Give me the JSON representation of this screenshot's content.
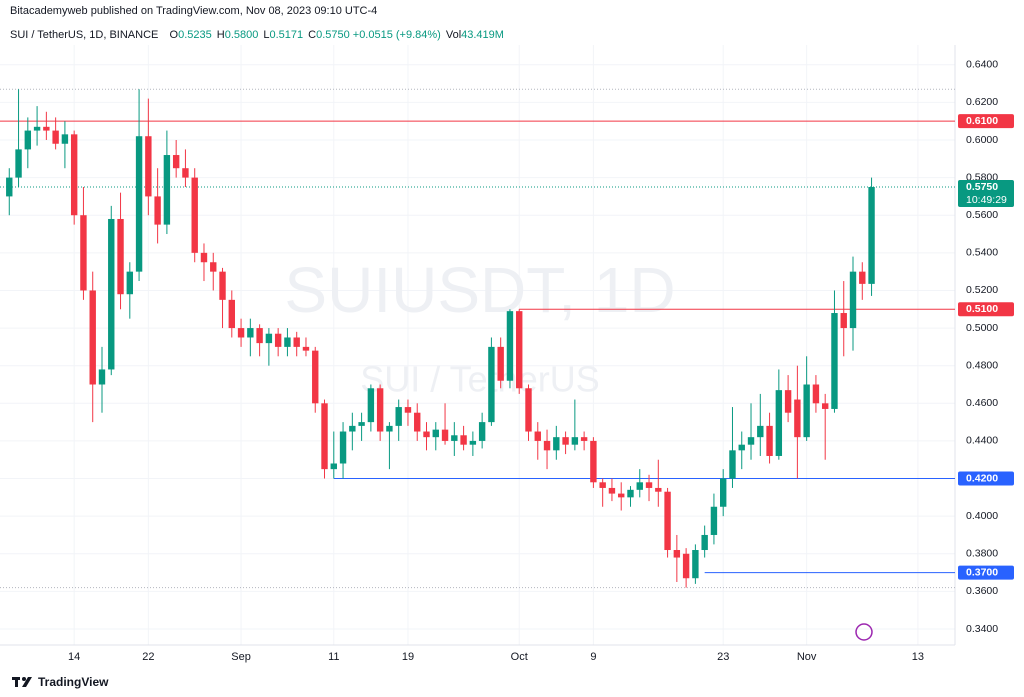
{
  "header": "Bitacademyweb published on TradingView.com, Nov 08, 2023 09:10 UTC-4",
  "footer": "TradingView",
  "chart_data": {
    "type": "candlestick",
    "symbol": "SUI / TetherUS, 1D, BINANCE",
    "fields": [
      {
        "key": "O",
        "text": "0.5235"
      },
      {
        "key": "H",
        "text": "0.5800"
      },
      {
        "key": "L",
        "text": "0.5171"
      },
      {
        "key": "C",
        "text": "0.5750"
      }
    ],
    "change": "+0.0515 (+9.84%)",
    "volume": {
      "key": "Vol",
      "text": "43.419M"
    },
    "watermark": "SUIUSDT, 1D",
    "watermark_sub": "SUI / TetherUS",
    "up_color": "#089981",
    "down_color": "#f23645",
    "x": [
      "2023-08-07",
      "2023-08-08",
      "2023-08-09",
      "2023-08-10",
      "2023-08-11",
      "2023-08-12",
      "2023-08-13",
      "2023-08-14",
      "2023-08-15",
      "2023-08-16",
      "2023-08-17",
      "2023-08-18",
      "2023-08-19",
      "2023-08-20",
      "2023-08-21",
      "2023-08-22",
      "2023-08-23",
      "2023-08-24",
      "2023-08-25",
      "2023-08-26",
      "2023-08-27",
      "2023-08-28",
      "2023-08-29",
      "2023-08-30",
      "2023-08-31",
      "2023-09-01",
      "2023-09-02",
      "2023-09-03",
      "2023-09-04",
      "2023-09-05",
      "2023-09-06",
      "2023-09-07",
      "2023-09-08",
      "2023-09-09",
      "2023-09-10",
      "2023-09-11",
      "2023-09-12",
      "2023-09-13",
      "2023-09-14",
      "2023-09-15",
      "2023-09-16",
      "2023-09-17",
      "2023-09-18",
      "2023-09-19",
      "2023-09-20",
      "2023-09-21",
      "2023-09-22",
      "2023-09-23",
      "2023-09-24",
      "2023-09-25",
      "2023-09-26",
      "2023-09-27",
      "2023-09-28",
      "2023-09-29",
      "2023-09-30",
      "2023-10-01",
      "2023-10-02",
      "2023-10-03",
      "2023-10-04",
      "2023-10-05",
      "2023-10-06",
      "2023-10-07",
      "2023-10-08",
      "2023-10-09",
      "2023-10-10",
      "2023-10-11",
      "2023-10-12",
      "2023-10-13",
      "2023-10-14",
      "2023-10-15",
      "2023-10-16",
      "2023-10-17",
      "2023-10-18",
      "2023-10-19",
      "2023-10-20",
      "2023-10-21",
      "2023-10-22",
      "2023-10-23",
      "2023-10-24",
      "2023-10-25",
      "2023-10-26",
      "2023-10-27",
      "2023-10-28",
      "2023-10-29",
      "2023-10-30",
      "2023-10-31",
      "2023-11-01",
      "2023-11-02",
      "2023-11-03",
      "2023-11-04",
      "2023-11-05",
      "2023-11-06",
      "2023-11-07",
      "2023-11-08"
    ],
    "open": [
      0.57,
      0.58,
      0.595,
      0.605,
      0.607,
      0.605,
      0.598,
      0.603,
      0.56,
      0.52,
      0.47,
      0.478,
      0.558,
      0.518,
      0.53,
      0.602,
      0.57,
      0.555,
      0.592,
      0.585,
      0.58,
      0.54,
      0.535,
      0.53,
      0.515,
      0.5,
      0.495,
      0.5,
      0.492,
      0.497,
      0.49,
      0.495,
      0.49,
      0.488,
      0.46,
      0.425,
      0.428,
      0.445,
      0.448,
      0.45,
      0.468,
      0.445,
      0.448,
      0.458,
      0.455,
      0.445,
      0.442,
      0.446,
      0.44,
      0.443,
      0.438,
      0.44,
      0.45,
      0.49,
      0.472,
      0.509,
      0.468,
      0.445,
      0.44,
      0.435,
      0.442,
      0.438,
      0.442,
      0.44,
      0.418,
      0.415,
      0.412,
      0.41,
      0.414,
      0.418,
      0.415,
      0.413,
      0.382,
      0.38,
      0.367,
      0.382,
      0.39,
      0.405,
      0.42,
      0.435,
      0.438,
      0.442,
      0.448,
      0.432,
      0.467,
      0.462,
      0.442,
      0.47,
      0.46,
      0.457,
      0.508,
      0.5,
      0.53,
      0.5235
    ],
    "high": [
      0.585,
      0.627,
      0.612,
      0.618,
      0.615,
      0.612,
      0.61,
      0.605,
      0.575,
      0.53,
      0.49,
      0.565,
      0.572,
      0.535,
      0.627,
      0.622,
      0.585,
      0.605,
      0.6,
      0.595,
      0.585,
      0.545,
      0.54,
      0.532,
      0.52,
      0.505,
      0.505,
      0.502,
      0.5,
      0.5,
      0.5,
      0.498,
      0.495,
      0.49,
      0.462,
      0.445,
      0.45,
      0.455,
      0.455,
      0.47,
      0.47,
      0.45,
      0.462,
      0.462,
      0.46,
      0.45,
      0.45,
      0.46,
      0.45,
      0.448,
      0.445,
      0.455,
      0.495,
      0.495,
      0.51,
      0.51,
      0.47,
      0.45,
      0.446,
      0.448,
      0.445,
      0.462,
      0.445,
      0.442,
      0.42,
      0.42,
      0.418,
      0.416,
      0.425,
      0.422,
      0.43,
      0.415,
      0.39,
      0.383,
      0.385,
      0.395,
      0.412,
      0.425,
      0.458,
      0.445,
      0.46,
      0.465,
      0.455,
      0.478,
      0.475,
      0.48,
      0.485,
      0.475,
      0.465,
      0.52,
      0.525,
      0.538,
      0.535,
      0.58
    ],
    "low": [
      0.56,
      0.575,
      0.585,
      0.597,
      0.6,
      0.595,
      0.585,
      0.555,
      0.515,
      0.45,
      0.455,
      0.475,
      0.51,
      0.505,
      0.525,
      0.56,
      0.545,
      0.55,
      0.58,
      0.575,
      0.535,
      0.525,
      0.52,
      0.5,
      0.495,
      0.49,
      0.485,
      0.485,
      0.48,
      0.485,
      0.485,
      0.485,
      0.485,
      0.455,
      0.42,
      0.42,
      0.42,
      0.435,
      0.44,
      0.445,
      0.44,
      0.425,
      0.44,
      0.448,
      0.44,
      0.435,
      0.435,
      0.438,
      0.432,
      0.435,
      0.432,
      0.436,
      0.448,
      0.468,
      0.468,
      0.465,
      0.44,
      0.43,
      0.425,
      0.43,
      0.433,
      0.435,
      0.435,
      0.415,
      0.405,
      0.408,
      0.403,
      0.405,
      0.41,
      0.408,
      0.405,
      0.378,
      0.365,
      0.362,
      0.364,
      0.378,
      0.385,
      0.4,
      0.415,
      0.425,
      0.43,
      0.432,
      0.428,
      0.43,
      0.45,
      0.42,
      0.44,
      0.455,
      0.43,
      0.455,
      0.485,
      0.488,
      0.515,
      0.5171
    ],
    "close": [
      0.58,
      0.595,
      0.605,
      0.607,
      0.605,
      0.598,
      0.603,
      0.56,
      0.52,
      0.47,
      0.478,
      0.558,
      0.518,
      0.53,
      0.602,
      0.57,
      0.555,
      0.592,
      0.585,
      0.58,
      0.54,
      0.535,
      0.53,
      0.515,
      0.5,
      0.495,
      0.5,
      0.492,
      0.497,
      0.49,
      0.495,
      0.49,
      0.488,
      0.46,
      0.425,
      0.428,
      0.445,
      0.448,
      0.45,
      0.468,
      0.445,
      0.448,
      0.458,
      0.455,
      0.445,
      0.442,
      0.446,
      0.44,
      0.443,
      0.438,
      0.44,
      0.45,
      0.49,
      0.472,
      0.509,
      0.468,
      0.445,
      0.44,
      0.435,
      0.442,
      0.438,
      0.442,
      0.44,
      0.418,
      0.415,
      0.412,
      0.41,
      0.414,
      0.418,
      0.415,
      0.413,
      0.382,
      0.378,
      0.367,
      0.382,
      0.39,
      0.405,
      0.42,
      0.435,
      0.438,
      0.442,
      0.448,
      0.432,
      0.467,
      0.455,
      0.442,
      0.47,
      0.46,
      0.457,
      0.508,
      0.5,
      0.53,
      0.5235,
      0.575
    ],
    "xlim": [
      "2023-08-06",
      "2023-11-17"
    ],
    "xticks": [
      {
        "value": "2023-08-14",
        "label": "14"
      },
      {
        "value": "2023-08-22",
        "label": "22"
      },
      {
        "value": "2023-09-01",
        "label": "Sep"
      },
      {
        "value": "2023-09-11",
        "label": "11"
      },
      {
        "value": "2023-09-19",
        "label": "19"
      },
      {
        "value": "2023-10-01",
        "label": "Oct"
      },
      {
        "value": "2023-10-09",
        "label": "9"
      },
      {
        "value": "2023-10-23",
        "label": "23"
      },
      {
        "value": "2023-11-01",
        "label": "Nov"
      },
      {
        "value": "2023-11-13",
        "label": "13"
      }
    ],
    "ylim": [
      0.3315,
      0.6505
    ],
    "yticks": [
      {
        "value": 0.34,
        "label": "0.3400"
      },
      {
        "value": 0.36,
        "label": "0.3600"
      },
      {
        "value": 0.38,
        "label": "0.3800"
      },
      {
        "value": 0.4,
        "label": "0.4000"
      },
      {
        "value": 0.42,
        "label": "0.4200"
      },
      {
        "value": 0.44,
        "label": "0.4400"
      },
      {
        "value": 0.46,
        "label": "0.4600"
      },
      {
        "value": 0.48,
        "label": "0.4800"
      },
      {
        "value": 0.5,
        "label": "0.5000"
      },
      {
        "value": 0.52,
        "label": "0.5200"
      },
      {
        "value": 0.54,
        "label": "0.5400"
      },
      {
        "value": 0.56,
        "label": "0.5600"
      },
      {
        "value": 0.58,
        "label": "0.5800"
      },
      {
        "value": 0.6,
        "label": "0.6000"
      },
      {
        "value": 0.62,
        "label": "0.6200"
      },
      {
        "value": 0.64,
        "label": "0.6400"
      }
    ],
    "grid": true,
    "levels": [
      {
        "value": 0.61,
        "label": "0.6100",
        "color": "#f23645"
      },
      {
        "value": 0.51,
        "label": "0.5100",
        "color": "#f23645",
        "from": "2023-10-01"
      },
      {
        "value": 0.42,
        "label": "0.4200",
        "color": "#2962ff",
        "from": "2023-09-11"
      },
      {
        "value": 0.37,
        "label": "0.3700",
        "color": "#2962ff",
        "from": "2023-10-21"
      }
    ],
    "dotted_levels": [
      0.627,
      0.362
    ],
    "current_price": {
      "value": 0.575,
      "label": "0.5750",
      "countdown": "10:49:29"
    }
  }
}
